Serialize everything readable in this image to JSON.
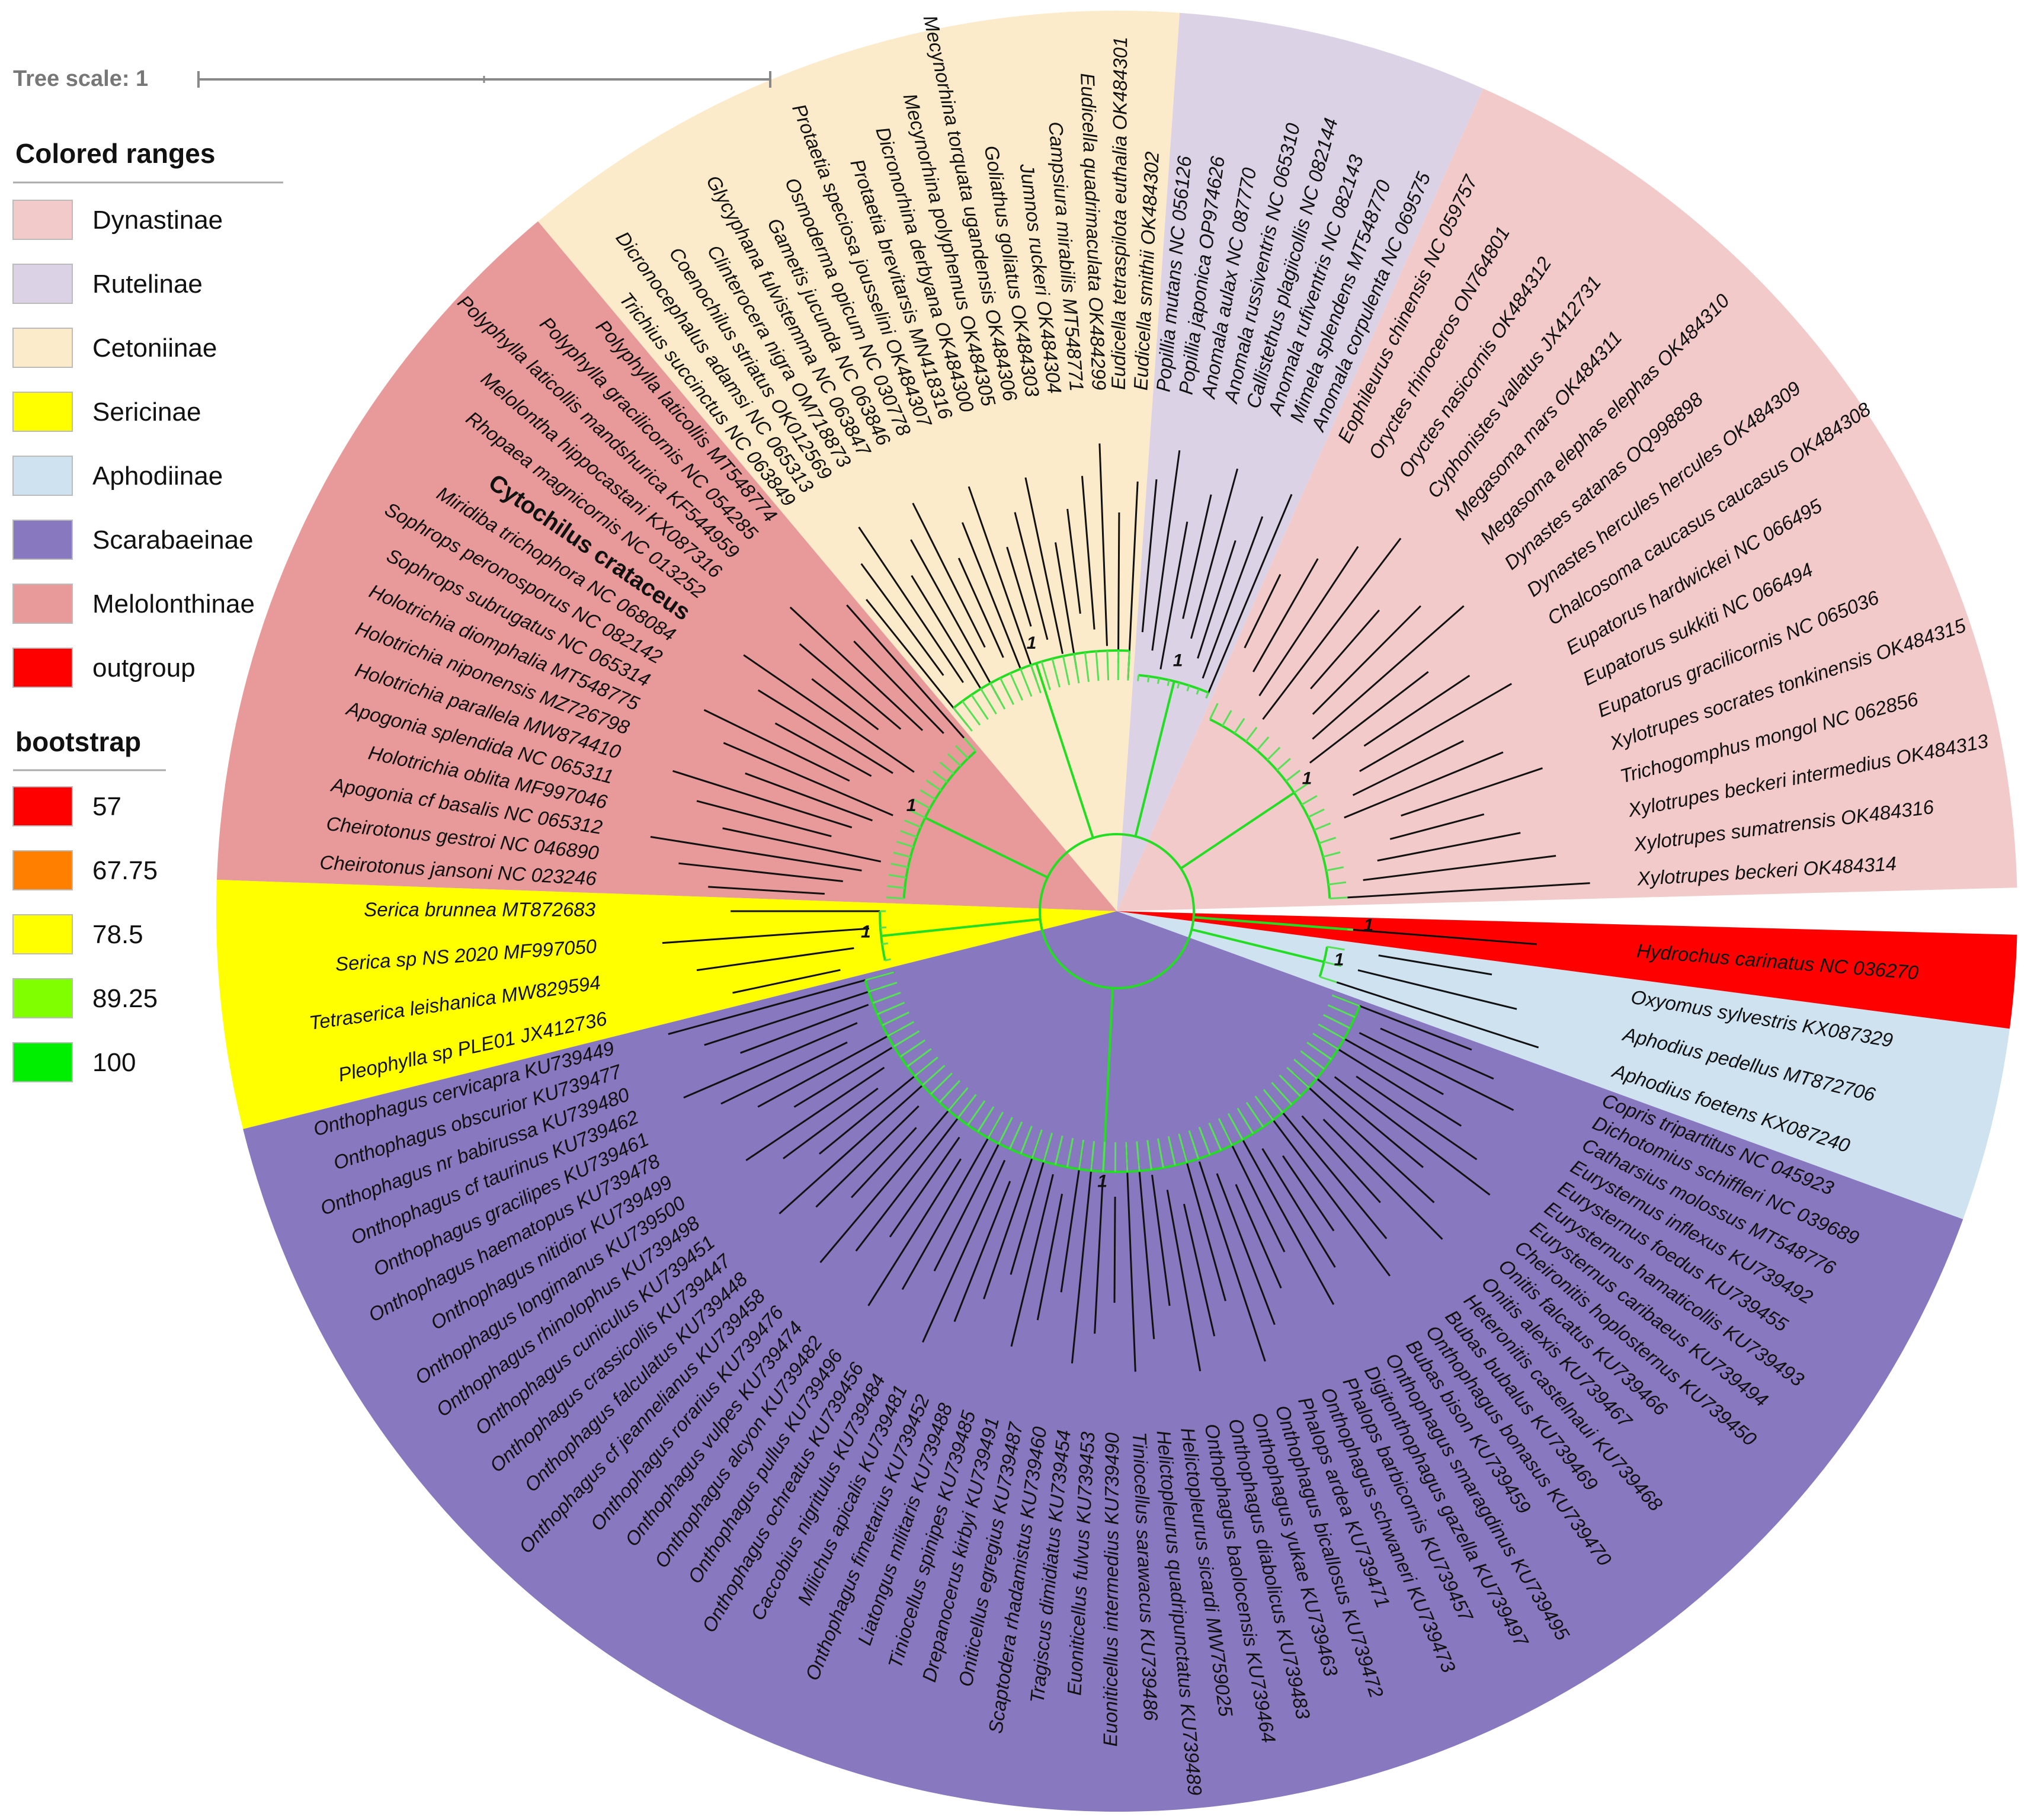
{
  "tree_scale": {
    "label": "Tree scale: 1"
  },
  "legend": {
    "ranges_title": "Colored ranges",
    "ranges": [
      {
        "label": "Dynastinae",
        "color": "#F2CACA"
      },
      {
        "label": "Rutelinae",
        "color": "#DCD2E6"
      },
      {
        "label": "Cetoniinae",
        "color": "#FCEBCA"
      },
      {
        "label": "Sericinae",
        "color": "#FFFF00"
      },
      {
        "label": "Aphodiinae",
        "color": "#CFE2F0"
      },
      {
        "label": "Scarabaeinae",
        "color": "#8878C0"
      },
      {
        "label": "Melolonthinae",
        "color": "#E89A9A"
      },
      {
        "label": "outgroup",
        "color": "#FF0000"
      }
    ],
    "bootstrap_title": "bootstrap",
    "bootstrap": [
      {
        "label": "57",
        "color": "#FF0000"
      },
      {
        "label": "67.75",
        "color": "#FF7F00"
      },
      {
        "label": "78.5",
        "color": "#FFFF00"
      },
      {
        "label": "89.25",
        "color": "#80FF00"
      },
      {
        "label": "100",
        "color": "#00EE00"
      }
    ]
  },
  "node_label": "1",
  "clades": [
    {
      "name": "Dynastinae",
      "color": "#F2CACA",
      "taxa": [
        "Xylotrupes beckeri OK484314",
        "Xylotrupes sumatrensis OK484316",
        "Xylotrupes beckeri intermedius OK484313",
        "Trichogomphus mongol NC 062856",
        "Xylotrupes socrates tonkinensis OK484315",
        "Eupatorus gracilicornis NC 065036",
        "Eupatorus sukkiti NC 066494",
        "Eupatorus hardwickei NC 066495",
        "Chalcosoma caucasus caucasus OK484308",
        "Dynastes hercules hercules OK484309",
        "Dynastes satanas OQ998898",
        "Megasoma elephas elephas OK484310",
        "Megasoma mars OK484311",
        "Cyphonistes vallatus JX412731",
        "Oryctes nasicornis OK484312",
        "Oryctes rhinoceros ON764801",
        "Eophileurus chinensis NC 059757"
      ]
    },
    {
      "name": "Rutelinae",
      "color": "#DCD2E6",
      "taxa": [
        "Anomala corpulenta NC 069575",
        "Mimela splendens MT548770",
        "Anomala rufiventris NC 082143",
        "Callistethus plagiicollis NC 082144",
        "Anomala russiventris NC 065310",
        "Anomala aulax NC 087770",
        "Popillia japonica OP974626",
        "Popillia mutans NC 056126"
      ]
    },
    {
      "name": "Cetoniinae",
      "color": "#FCEBCA",
      "taxa": [
        "Eudicella smithii OK484302",
        "Eudicella tetraspilota euthalia OK484301",
        "Eudicella quadrimaculata OK484299",
        "Campsiura mirabilis MT548771",
        "Jumnos ruckeri OK484304",
        "Goliathus goliatus OK484303",
        "Mecynorhina torquata ugandensis OK484306",
        "Mecynorhina polyphemus OK484305",
        "Dicronorhina derbyana OK484300",
        "Protaetia brevitarsis MN418316",
        "Protaetia speciosa jousselini OK484307",
        "Osmoderma opicum NC 030778",
        "Gametis jucunda NC 063846",
        "Glycyphana fulvistemma NC 063847",
        "Clinterocera nigra OM718873",
        "Coenochilus striatus OK012569",
        "Dicronocephalus adamsi NC 065313",
        "Trichius succinctus NC 063849"
      ]
    },
    {
      "name": "Melolonthinae",
      "color": "#E89A9A",
      "taxa": [
        "Polyphylla laticollis MT548774",
        "Polyphylla gracilicornis NC 054285",
        "Polyphylla laticollis mandshurica KF544959",
        "Melolontha hippocastani KX087316",
        "Rhopaea magnicornis NC 013252",
        "Cytochilus crataceus",
        "Miridiba trichophora NC 068084",
        "Sophrops peronosporus NC 082142",
        "Sophrops subrugatus NC 065314",
        "Holotrichia diomphalia MT548775",
        "Holotrichia niponensis MZ726798",
        "Holotrichia parallela MW874410",
        "Apogonia splendida NC 065311",
        "Holotrichia oblita MF997046",
        "Apogonia cf basalis NC 065312",
        "Cheirotonus gestroi NC 046890",
        "Cheirotonus jansoni NC 023246"
      ]
    },
    {
      "name": "Sericinae",
      "color": "#FFFF00",
      "taxa": [
        "Serica brunnea MT872683",
        "Serica sp NS 2020 MF997050",
        "Tetraserica leishanica MW829594",
        "Pleophylla sp PLE01 JX412736"
      ]
    },
    {
      "name": "Scarabaeinae",
      "color": "#8878C0",
      "taxa": [
        "Onthophagus cervicapra KU739449",
        "Onthophagus obscurior KU739477",
        "Onthophagus nr babirussa KU739480",
        "Onthophagus cf taurinus KU739462",
        "Onthophagus gracilipes KU739461",
        "Onthophagus haematopus KU739478",
        "Onthophagus nitidior KU739499",
        "Onthophagus longimanus KU739500",
        "Onthophagus rhinolophus KU739498",
        "Onthophagus cuniculus KU739451",
        "Onthophagus crassicollis KU739447",
        "Onthophagus falculatus KU739448",
        "Onthophagus cf jeannelianus KU739458",
        "Onthophagus rorarius KU739476",
        "Onthophagus vulpes KU739474",
        "Onthophagus alcyon KU739482",
        "Onthophagus pullus KU739496",
        "Onthophagus ochreatus KU739456",
        "Caccobius nigritulus KU739484",
        "Milichus apicalis KU739481",
        "Onthophagus fimetarius KU739452",
        "Liatongus militaris KU739488",
        "Tiniocellus spinipes KU739485",
        "Drepanocerus kirbyi KU739491",
        "Oniticellus egregius KU739487",
        "Scaptodera rhadamistus KU739460",
        "Tragiscus dimidiatus KU739454",
        "Euoniticellus fulvus KU739453",
        "Euoniticellus intermedius KU739490",
        "Tiniocellus sarawacus KU739486",
        "Helictopleurus quadripunctatus KU739489",
        "Helictopleurus sicardi MW759025",
        "Onthophagus baolocensis KU739464",
        "Onthophagus diabolicus KU739483",
        "Onthophagus yukae KU739463",
        "Onthophagus bicallosus KU739472",
        "Phalops ardea KU739471",
        "Onthophagus schwaneri KU739473",
        "Phalops barbicornis KU739457",
        "Digitonthophagus gazella KU739497",
        "Onthophagus smaragdinus KU739495",
        "Bubas bison KU739459",
        "Onthophagus bonasus KU739470",
        "Bubas bubalus KU739469",
        "Heteronitis castelnaui KU739468",
        "Onitis alexis KU739467",
        "Onitis falcatus KU739466",
        "Cheironitis hoplosternus KU739450",
        "Eurysternus caribaeus KU739494",
        "Eurysternus hamaticollis KU739493",
        "Eurysternus foedus KU739455",
        "Eurysternus inflexus KU739492",
        "Catharsius molossus MT548776",
        "Dichotomius schiffleri NC 039689",
        "Copris tripartitus NC 045923"
      ]
    },
    {
      "name": "Aphodiinae",
      "color": "#CFE2F0",
      "taxa": [
        "Aphodius foetens KX087240",
        "Aphodius pedellus MT872706",
        "Oxyomus sylvestris KX087329"
      ]
    },
    {
      "name": "outgroup",
      "color": "#FF0000",
      "taxa": [
        "Hydrochus carinatus NC 036270"
      ]
    }
  ],
  "highlight": {
    "taxon": "Cytochilus crataceus",
    "color": "#FF1A1A"
  }
}
